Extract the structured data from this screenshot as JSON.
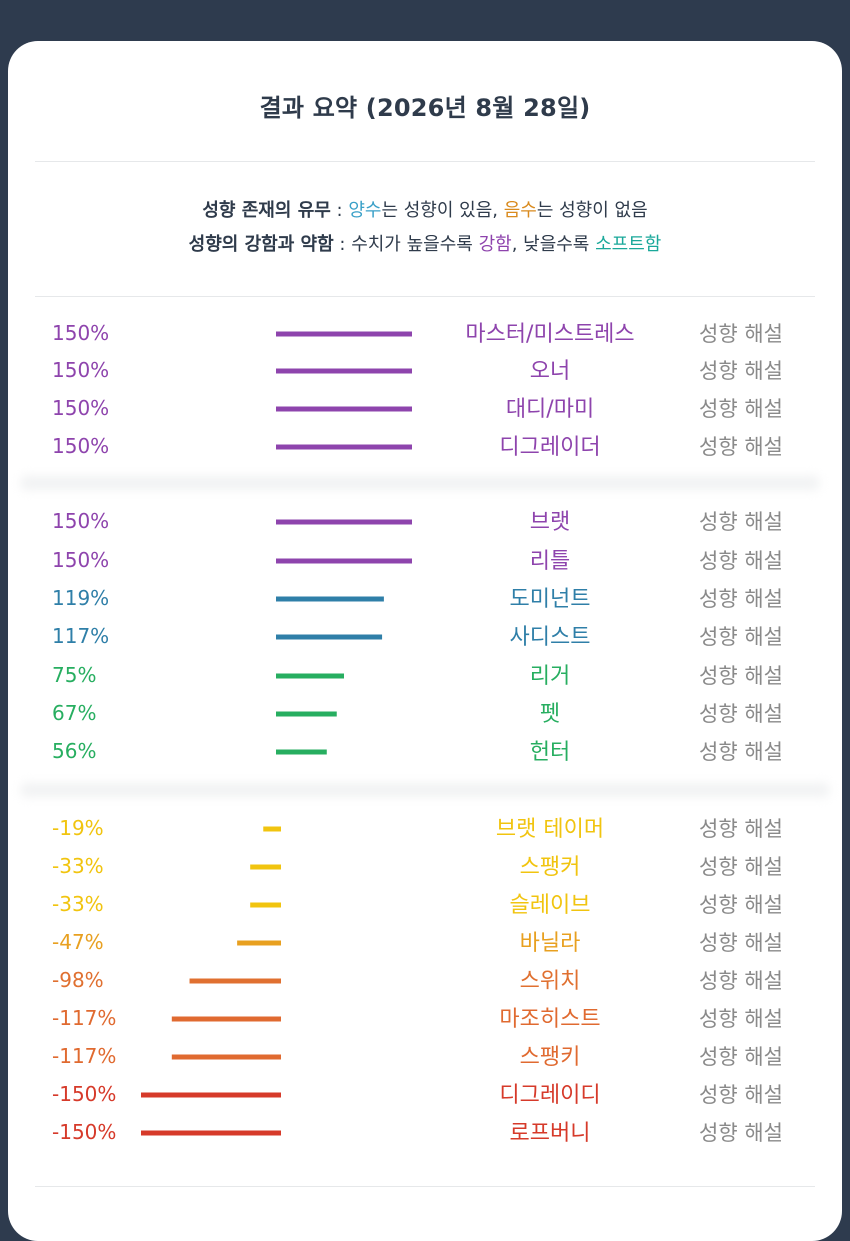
{
  "summary": {
    "title": "결과 요약 (2026년 8월 28일)",
    "legend": {
      "line1_key": "성향 존재의 유무",
      "sep": " : ",
      "positive_word": "양수",
      "positive_text": "는 성향이 있음, ",
      "negative_word": "음수",
      "negative_text": "는 성향이 없음",
      "line2_key": "성향의 강함과 약함",
      "line2_text": "수치가 높을수록 ",
      "strong_word": "강함",
      "line2_mid": ", 낮을수록 ",
      "soft_word": "소프트함"
    },
    "detail_label": "성향 해설"
  },
  "colors": {
    "positive_word": "#3aa0c8",
    "negative_word": "#d98a1e",
    "strong_word": "#8e44ad",
    "soft_word": "#1aa89a",
    "detail": "#8a8a8a"
  },
  "chart_data": {
    "type": "bar",
    "unit": "%",
    "range": [
      -150,
      150
    ],
    "rows": [
      {
        "label": "마스터/미스트레스",
        "value": 150,
        "pct": "150%",
        "color": "#8e44ad"
      },
      {
        "label": "오너",
        "value": 150,
        "pct": "150%",
        "color": "#8e44ad"
      },
      {
        "label": "대디/마미",
        "value": 150,
        "pct": "150%",
        "color": "#8e44ad"
      },
      {
        "label": "디그레이더",
        "value": 150,
        "pct": "150%",
        "color": "#8e44ad"
      },
      {
        "label": "브랫",
        "value": 150,
        "pct": "150%",
        "color": "#8e44ad"
      },
      {
        "label": "리틀",
        "value": 150,
        "pct": "150%",
        "color": "#8e44ad"
      },
      {
        "label": "도미넌트",
        "value": 119,
        "pct": "119%",
        "color": "#2f7fa8"
      },
      {
        "label": "사디스트",
        "value": 117,
        "pct": "117%",
        "color": "#2f7fa8"
      },
      {
        "label": "리거",
        "value": 75,
        "pct": "75%",
        "color": "#27ae60"
      },
      {
        "label": "펫",
        "value": 67,
        "pct": "67%",
        "color": "#27ae60"
      },
      {
        "label": "헌터",
        "value": 56,
        "pct": "56%",
        "color": "#27ae60"
      },
      {
        "label": "브랫 테이머",
        "value": -19,
        "pct": "-19%",
        "color": "#f1c40f"
      },
      {
        "label": "스팽커",
        "value": -33,
        "pct": "-33%",
        "color": "#f1c40f"
      },
      {
        "label": "슬레이브",
        "value": -33,
        "pct": "-33%",
        "color": "#f1c40f"
      },
      {
        "label": "바닐라",
        "value": -47,
        "pct": "-47%",
        "color": "#e8a020"
      },
      {
        "label": "스위치",
        "value": -98,
        "pct": "-98%",
        "color": "#e07030"
      },
      {
        "label": "마조히스트",
        "value": -117,
        "pct": "-117%",
        "color": "#e06a30"
      },
      {
        "label": "스팽키",
        "value": -117,
        "pct": "-117%",
        "color": "#e06a30"
      },
      {
        "label": "디그레이디",
        "value": -150,
        "pct": "-150%",
        "color": "#d63a2a"
      },
      {
        "label": "로프버니",
        "value": -150,
        "pct": "-150%",
        "color": "#d63a2a"
      }
    ]
  }
}
